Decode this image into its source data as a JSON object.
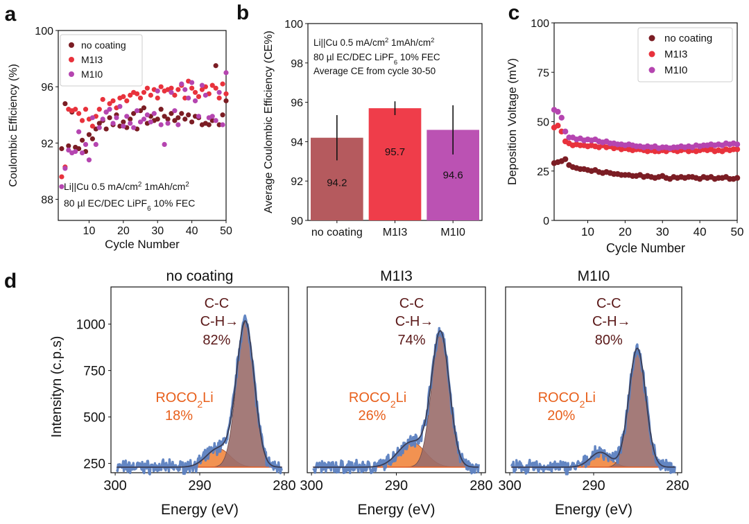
{
  "panel_letters": {
    "a": "a",
    "b": "b",
    "c": "c",
    "d": "d"
  },
  "colors": {
    "no_coating": "#7b1d24",
    "M1I3": "#e8323c",
    "M1I0": "#b545b0",
    "bar_no_coating": "#b55a5e",
    "bar_M1I3": "#ef3d4a",
    "bar_M1I0": "#bb52b3",
    "xps_raw": "#5b80c0",
    "xps_fit": "#3a3d55",
    "xps_main": "#9a6d6a",
    "xps_minor": "#f07f32",
    "xps_base": "#e0602a",
    "label_cc": "#5a1818",
    "label_roco": "#e8601c"
  },
  "chart_data": [
    {
      "id": "a",
      "type": "scatter",
      "xlabel": "Cycle Number",
      "ylabel": "Coulombic Efficiency (%)",
      "xlim": [
        1,
        50
      ],
      "ylim": [
        86.5,
        100
      ],
      "xticks": [
        "10",
        "20",
        "30",
        "40",
        "50"
      ],
      "yticks": [
        "88",
        "92",
        "96",
        "100"
      ],
      "legend": [
        "no coating",
        "M1I3",
        "M1I0"
      ],
      "annotation": [
        "Li||Cu 0.5 mA/cm² 1mAh/cm²",
        "80 µl EC/DEC LiPF₆ 10% FEC"
      ],
      "series": [
        {
          "name": "no coating",
          "x": [
            2,
            3,
            4,
            5,
            6,
            7,
            8,
            9,
            10,
            11,
            12,
            13,
            14,
            15,
            16,
            17,
            18,
            19,
            20,
            21,
            22,
            23,
            24,
            25,
            26,
            27,
            28,
            29,
            30,
            31,
            32,
            33,
            34,
            35,
            36,
            37,
            38,
            39,
            40,
            41,
            42,
            43,
            44,
            45,
            46,
            47,
            48,
            49,
            50
          ],
          "values": [
            91.6,
            94.8,
            91.8,
            94.2,
            91.7,
            91.6,
            92.2,
            91.4,
            92.6,
            92.3,
            93.0,
            93.4,
            93.6,
            93.0,
            93.8,
            93.3,
            94.0,
            93.2,
            93.5,
            93.1,
            93.7,
            94.1,
            93.0,
            94.3,
            94.5,
            93.4,
            93.9,
            93.6,
            93.7,
            94.4,
            93.9,
            93.7,
            94.1,
            93.6,
            93.8,
            94.1,
            93.7,
            94.0,
            93.5,
            93.9,
            93.8,
            93.3,
            93.4,
            93.3,
            93.6,
            97.5,
            93.3,
            94.0,
            95.0
          ]
        },
        {
          "name": "M1I3",
          "x": [
            2,
            3,
            4,
            5,
            6,
            7,
            8,
            9,
            10,
            11,
            12,
            13,
            14,
            15,
            16,
            17,
            18,
            19,
            20,
            21,
            22,
            23,
            24,
            25,
            26,
            27,
            28,
            29,
            30,
            31,
            32,
            33,
            34,
            35,
            36,
            37,
            38,
            39,
            40,
            41,
            42,
            43,
            44,
            45,
            46,
            47,
            48,
            49,
            50
          ],
          "values": [
            89.6,
            90.3,
            94.4,
            94.3,
            94.4,
            94.1,
            93.6,
            94.4,
            93.7,
            93.2,
            93.9,
            94.4,
            95.1,
            94.2,
            94.8,
            95.0,
            94.5,
            95.2,
            95.3,
            95.0,
            95.4,
            95.6,
            95.5,
            95.2,
            95.6,
            95.9,
            95.4,
            95.8,
            95.2,
            96.0,
            95.7,
            95.8,
            95.9,
            95.4,
            95.8,
            96.1,
            95.2,
            96.4,
            95.9,
            95.6,
            95.3,
            95.8,
            96.0,
            95.5,
            96.1,
            95.9,
            95.2,
            96.2,
            95.5
          ]
        },
        {
          "name": "M1I0",
          "x": [
            2,
            3,
            4,
            5,
            6,
            7,
            8,
            9,
            10,
            11,
            12,
            13,
            14,
            15,
            16,
            17,
            18,
            19,
            20,
            21,
            22,
            23,
            24,
            25,
            26,
            27,
            28,
            29,
            30,
            31,
            32,
            33,
            34,
            35,
            36,
            37,
            38,
            39,
            40,
            41,
            42,
            43,
            44,
            45,
            46,
            47,
            48,
            49,
            50
          ],
          "values": [
            88.9,
            90.2,
            91.5,
            91.3,
            91.4,
            92.8,
            91.3,
            91.9,
            90.8,
            93.8,
            91.9,
            93.1,
            93.7,
            94.2,
            94.4,
            93.4,
            93.8,
            94.6,
            93.2,
            93.9,
            93.4,
            93.1,
            94.3,
            93.5,
            93.7,
            94.0,
            93.5,
            94.1,
            95.7,
            93.3,
            91.9,
            93.4,
            95.6,
            94.3,
            93.3,
            96.2,
            95.8,
            95.2,
            96.3,
            95.0,
            93.9,
            96.1,
            95.4,
            93.8,
            93.9,
            93.6,
            95.6,
            93.3,
            97.0
          ]
        }
      ]
    },
    {
      "id": "b",
      "type": "bar",
      "ylabel": "Average Coulombic Efficiency (CE%)",
      "ylim": [
        90,
        100
      ],
      "yticks": [
        "90",
        "92",
        "94",
        "96",
        "98",
        "100"
      ],
      "categories": [
        "no coating",
        "M1I3",
        "M1I0"
      ],
      "values": [
        94.2,
        95.7,
        94.6
      ],
      "value_labels": [
        "94.2",
        "95.7",
        "94.6"
      ],
      "errors": [
        1.15,
        0.35,
        1.25
      ],
      "annotation": [
        "Li||Cu 0.5 mA/cm² 1mAh/cm²",
        "80 µl EC/DEC LiPF₆ 10% FEC",
        "Average CE from cycle 30-50"
      ]
    },
    {
      "id": "c",
      "type": "scatter",
      "xlabel": "Cycle Number",
      "ylabel": "Deposition Voltage (mV)",
      "xlim": [
        1,
        50
      ],
      "ylim": [
        0,
        100
      ],
      "xticks": [
        "10",
        "20",
        "30",
        "40",
        "50"
      ],
      "yticks": [
        "0",
        "25",
        "50",
        "75",
        "100"
      ],
      "legend": [
        "no coating",
        "M1I3",
        "M1I0"
      ],
      "series": [
        {
          "name": "no coating",
          "x": [
            1,
            2,
            3,
            4,
            5,
            6,
            7,
            8,
            9,
            10,
            11,
            12,
            13,
            14,
            15,
            16,
            17,
            18,
            19,
            20,
            21,
            22,
            23,
            24,
            25,
            26,
            27,
            28,
            29,
            30,
            31,
            32,
            33,
            34,
            35,
            36,
            37,
            38,
            39,
            40,
            41,
            42,
            43,
            44,
            45,
            46,
            47,
            48,
            49,
            50
          ],
          "values": [
            29,
            29.5,
            30,
            31,
            28,
            27,
            26.5,
            26,
            26,
            25.5,
            25,
            25.5,
            24.5,
            24,
            24.5,
            24,
            23.5,
            23.5,
            23,
            23,
            23,
            22.5,
            22.5,
            23,
            22,
            22.5,
            22,
            21.5,
            22,
            22.5,
            21.5,
            21,
            22,
            21.5,
            22,
            21.5,
            22,
            22,
            21.5,
            21,
            22,
            21.5,
            22,
            21,
            21.5,
            21.5,
            22,
            21,
            21,
            21.5
          ]
        },
        {
          "name": "M1I3",
          "x": [
            1,
            2,
            3,
            4,
            5,
            6,
            7,
            8,
            9,
            10,
            11,
            12,
            13,
            14,
            15,
            16,
            17,
            18,
            19,
            20,
            21,
            22,
            23,
            24,
            25,
            26,
            27,
            28,
            29,
            30,
            31,
            32,
            33,
            34,
            35,
            36,
            37,
            38,
            39,
            40,
            41,
            42,
            43,
            44,
            45,
            46,
            47,
            48,
            49,
            50
          ],
          "values": [
            47,
            48,
            45,
            40,
            39,
            38,
            38.5,
            38,
            38,
            37.5,
            38,
            37.5,
            37,
            38,
            37,
            37.5,
            36.5,
            37,
            36,
            36.5,
            36,
            35.5,
            36,
            36,
            35.5,
            35,
            35.5,
            35,
            35,
            35.5,
            35,
            36,
            35.5,
            35,
            35.5,
            36,
            35,
            35.5,
            35,
            35.5,
            36,
            35.5,
            36,
            35,
            35.5,
            35,
            36,
            35.5,
            36,
            36
          ]
        },
        {
          "name": "M1I0",
          "x": [
            1,
            2,
            3,
            4,
            5,
            6,
            7,
            8,
            9,
            10,
            11,
            12,
            13,
            14,
            15,
            16,
            17,
            18,
            19,
            20,
            21,
            22,
            23,
            24,
            25,
            26,
            27,
            28,
            29,
            30,
            31,
            32,
            33,
            34,
            35,
            36,
            37,
            38,
            39,
            40,
            41,
            42,
            43,
            44,
            45,
            46,
            47,
            48,
            49,
            50
          ],
          "values": [
            56,
            55,
            52,
            45,
            42,
            42,
            41,
            41.5,
            40.5,
            41,
            40.5,
            41,
            40,
            39.5,
            40,
            39,
            39,
            38.5,
            38.5,
            38,
            38.5,
            38,
            37.5,
            37.5,
            37,
            37.5,
            37,
            37.5,
            36.5,
            37,
            37,
            36.5,
            37,
            37,
            37.5,
            37,
            37.5,
            37,
            38,
            37.5,
            38,
            38,
            38.5,
            38,
            38.5,
            38,
            39,
            38.5,
            39,
            38.5
          ]
        }
      ]
    },
    {
      "id": "d",
      "type": "line",
      "subtype": "xps_spectra",
      "xlabel": "Energy (eV)",
      "ylabel": "Intensityn (c.p.s)",
      "xlim": [
        300.5,
        279.5
      ],
      "ylim": [
        200,
        1200
      ],
      "xticks": [
        "300",
        "290",
        "280"
      ],
      "yticks": [
        "250",
        "500",
        "750",
        "1000"
      ],
      "panels": [
        {
          "title": "no coating",
          "main_peak": {
            "center": 284.6,
            "height": 780,
            "width": 1.05
          },
          "minor_peak": {
            "center": 287.8,
            "height": 100,
            "width": 1.4
          },
          "cc_labels": [
            "C-C",
            "C-H→",
            "82%"
          ],
          "roco_label": "ROCO₂Li",
          "roco_pct": "18%"
        },
        {
          "title": "M1I3",
          "main_peak": {
            "center": 284.8,
            "height": 720,
            "width": 1.05
          },
          "minor_peak": {
            "center": 288.2,
            "height": 135,
            "width": 1.6
          },
          "cc_labels": [
            "C-C",
            "C-H→",
            "74%"
          ],
          "roco_label": "ROCO₂Li",
          "roco_pct": "26%"
        },
        {
          "title": "M1I0",
          "main_peak": {
            "center": 284.8,
            "height": 640,
            "width": 1.0
          },
          "minor_peak": {
            "center": 289.2,
            "height": 80,
            "width": 1.2
          },
          "cc_labels": [
            "C-C",
            "C-H→",
            "80%"
          ],
          "roco_label": "ROCO₂Li",
          "roco_pct": "20%"
        }
      ]
    }
  ]
}
